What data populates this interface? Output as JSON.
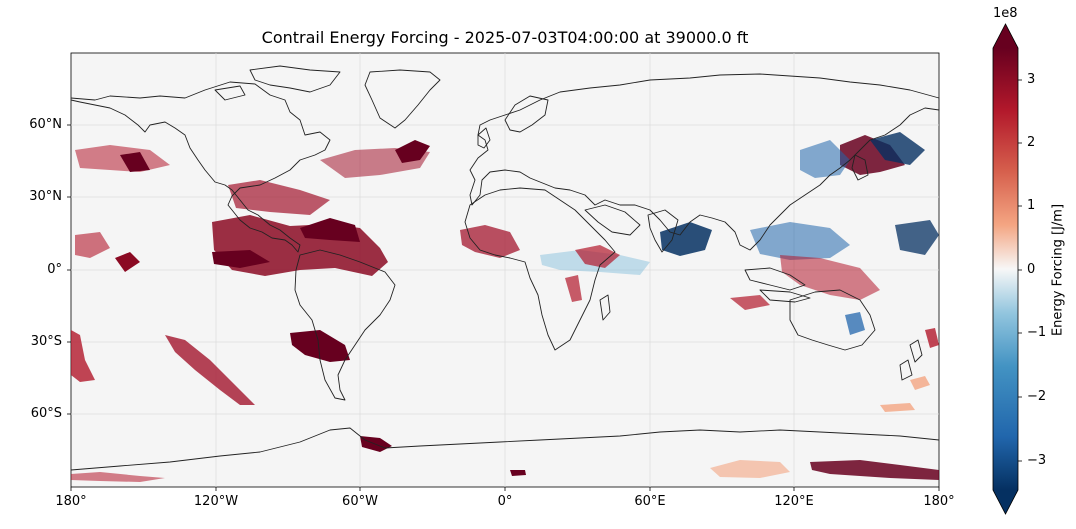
{
  "title": "Contrail Energy Forcing - 2025-07-03T04:00:00 at 39000.0 ft",
  "map": {
    "projection": "PlateCarree",
    "extent_lon": [
      -180,
      180
    ],
    "extent_lat": [
      -90,
      90
    ],
    "ocean_color": "#f5f5f5",
    "coast_color": "#222222",
    "grid_color": "#dcdcdc",
    "x_ticks": [
      "180°",
      "120°W",
      "60°W",
      "0°",
      "60°E",
      "120°E",
      "180°"
    ],
    "y_ticks": [
      "60°N",
      "30°N",
      "0°",
      "30°S",
      "60°S"
    ]
  },
  "colorbar": {
    "cmap": "RdBu_r",
    "label": "Energy Forcing [J/m]",
    "exponent": "1e8",
    "range": [
      -3.5,
      3.5
    ],
    "ticks": [
      "3",
      "2",
      "1",
      "0",
      "−1",
      "−2",
      "−3"
    ],
    "extend": "both"
  }
}
